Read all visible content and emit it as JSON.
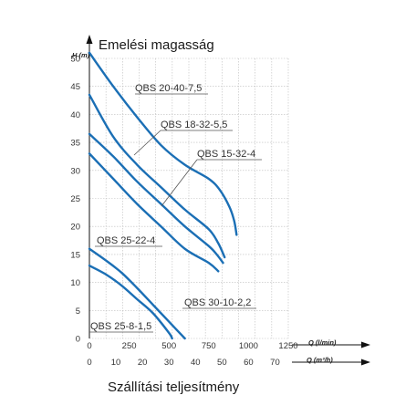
{
  "chart_data": {
    "type": "line",
    "title": "Emelési magasság",
    "xlabel": "Szállítási teljesítmény",
    "ylabel_unit": "H (m)",
    "xlabel_unit_primary": "Q (l/min)",
    "xlabel_unit_secondary": "Q (m³/h)",
    "xlim": [
      0,
      1250
    ],
    "ylim": [
      0,
      50
    ],
    "y_ticks": [
      0,
      5,
      10,
      15,
      20,
      25,
      30,
      35,
      40,
      45,
      50
    ],
    "x_ticks_primary": [
      0,
      250,
      500,
      750,
      1000,
      1250
    ],
    "x_ticks_secondary": [
      0,
      10,
      20,
      30,
      40,
      50,
      60,
      70
    ],
    "grid": true,
    "series": [
      {
        "name": "QBS 20-40-7,5",
        "x": [
          0,
          150,
          300,
          450,
          600,
          750,
          820,
          880,
          910,
          925
        ],
        "y": [
          51,
          45,
          39.5,
          34.5,
          31,
          28.5,
          26.5,
          23.5,
          21,
          18.5
        ]
      },
      {
        "name": "QBS 18-32-5,5",
        "x": [
          0,
          150,
          300,
          450,
          600,
          750,
          810,
          850
        ],
        "y": [
          43.5,
          36,
          31,
          27,
          23,
          19.5,
          17,
          14.5
        ]
      },
      {
        "name": "QBS 15-32-4",
        "x": [
          0,
          150,
          300,
          450,
          600,
          750,
          800,
          840
        ],
        "y": [
          36.5,
          32.5,
          28,
          24,
          20,
          16.5,
          15,
          13.5
        ]
      },
      {
        "name": "QBS 25-22-4",
        "x": [
          0,
          150,
          300,
          450,
          600,
          750,
          810
        ],
        "y": [
          33,
          28.5,
          24,
          20,
          16,
          13.5,
          12
        ]
      },
      {
        "name": "QBS 30-10-2,2",
        "x": [
          0,
          100,
          200,
          300,
          400,
          500,
          600
        ],
        "y": [
          16,
          14,
          11.8,
          9,
          6,
          3,
          0
        ]
      },
      {
        "name": "QBS 25-8-1,5",
        "x": [
          0,
          100,
          200,
          300,
          400,
          500,
          520
        ],
        "y": [
          13,
          11.5,
          9.5,
          7,
          4.5,
          1,
          0
        ]
      }
    ]
  }
}
